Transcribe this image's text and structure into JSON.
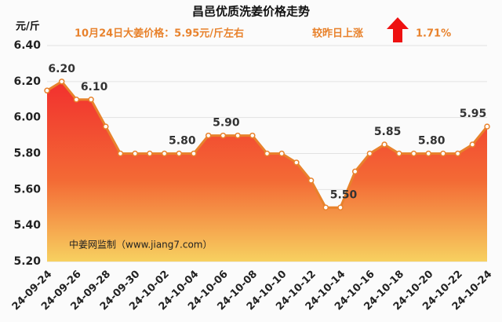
{
  "chart_data": {
    "type": "area-line",
    "title": "昌邑优质洗姜价格走势",
    "subtitle": "10月24日大姜价格：5.95元/斤左右",
    "change_text": "较昨日上涨",
    "change_value": "1.71%",
    "y_axis_label": "元/斤",
    "watermark": "中姜网监制（www.jiang7.com）",
    "categories": [
      "24-09-24",
      null,
      "24-09-26",
      null,
      "24-09-28",
      null,
      "24-09-30",
      null,
      "24-10-02",
      null,
      "24-10-04",
      null,
      "24-10-06",
      null,
      "24-10-08",
      null,
      "24-10-10",
      null,
      "24-10-12",
      null,
      "24-10-14",
      null,
      "24-10-16",
      null,
      "24-10-18",
      null,
      "24-10-20",
      null,
      "24-10-22",
      null,
      "24-10-24"
    ],
    "series": [
      {
        "color": "#e8822c",
        "values": [
          6.15,
          6.2,
          6.1,
          6.1,
          5.95,
          5.8,
          5.8,
          5.8,
          5.8,
          5.8,
          5.8,
          5.9,
          5.9,
          5.9,
          5.9,
          5.8,
          5.8,
          5.75,
          5.65,
          5.5,
          5.5,
          5.7,
          5.8,
          5.85,
          5.8,
          5.8,
          5.8,
          5.8,
          5.8,
          5.85,
          5.95
        ],
        "value_labels": [
          null,
          "6.20",
          null,
          "6.10",
          null,
          null,
          null,
          null,
          null,
          "5.80",
          null,
          null,
          "5.90",
          null,
          null,
          null,
          null,
          null,
          null,
          null,
          "5.50",
          null,
          null,
          "5.85",
          null,
          null,
          "5.80",
          null,
          null,
          null,
          "5.95"
        ]
      }
    ],
    "ylim": [
      5.2,
      6.4
    ],
    "yticks": [
      {
        "value": 5.2,
        "label": "5.20"
      },
      {
        "value": 5.4,
        "label": "5.40"
      },
      {
        "value": 5.6,
        "label": "5.60"
      },
      {
        "value": 5.8,
        "label": "5.80"
      },
      {
        "value": 6.0,
        "label": "6.00"
      },
      {
        "value": 6.2,
        "label": "6.20"
      },
      {
        "value": 6.4,
        "label": "6.40"
      }
    ],
    "grid": true
  }
}
